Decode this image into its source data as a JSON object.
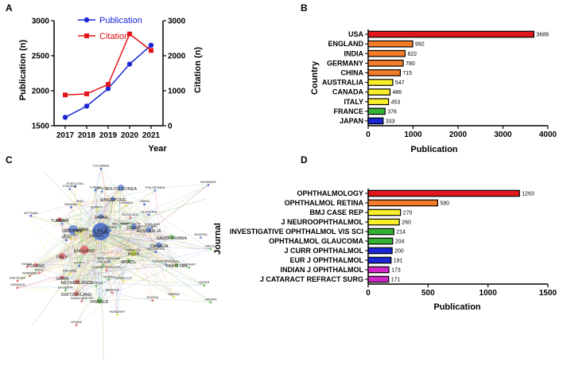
{
  "panels": {
    "a": "A",
    "b": "B",
    "c": "C",
    "d": "D"
  },
  "chart_data": [
    {
      "type": "line",
      "panel": "A",
      "x": [
        2017,
        2018,
        2019,
        2020,
        2021
      ],
      "series": [
        {
          "name": "Publication",
          "axis": "left",
          "color": "#1a25d6",
          "marker": "circle",
          "values": [
            1620,
            1780,
            2030,
            2380,
            2650
          ]
        },
        {
          "name": "Citation",
          "axis": "right",
          "color": "#e2171c",
          "marker": "square",
          "values": [
            880,
            910,
            1180,
            2620,
            2150
          ]
        }
      ],
      "xticks": [
        "2017",
        "2018",
        "2019",
        "2020",
        "2021"
      ],
      "yticks_left": [
        "1500",
        "2000",
        "2500",
        "3000"
      ],
      "yticks_right": [
        "0",
        "1000",
        "2000",
        "3000"
      ],
      "ylim_left": [
        1500,
        3000
      ],
      "ylim_right": [
        0,
        3000
      ],
      "xlabel": "Year",
      "ylabel": "Publication (n)",
      "ylabel_right": "Citation (n)"
    },
    {
      "type": "bar",
      "orientation": "horizontal",
      "panel": "B",
      "categories": [
        "USA",
        "ENGLAND",
        "INDIA",
        "GERMANY",
        "CHINA",
        "AUSTRALIA",
        "CANADA",
        "ITALY",
        "FRANCE",
        "JAPAN"
      ],
      "values": [
        3689,
        992,
        822,
        780,
        715,
        547,
        486,
        453,
        376,
        333
      ],
      "value_labels": [
        "3689",
        "992",
        "822",
        "780",
        "715",
        "547",
        "486",
        "453",
        "376",
        "333"
      ],
      "colors": [
        "#e2171c",
        "#f47c28",
        "#f47c28",
        "#f47c28",
        "#f47c28",
        "#f8ef2a",
        "#f8ef2a",
        "#f8ef2a",
        "#36b233",
        "#1a25d6"
      ],
      "xticks": [
        "0",
        "1000",
        "2000",
        "3000",
        "4000"
      ],
      "xlim": [
        0,
        4000
      ],
      "xlabel": "Publication",
      "ylabel": "Country"
    },
    {
      "type": "bar",
      "orientation": "horizontal",
      "panel": "D",
      "categories": [
        "OPHTHALMOLOGY",
        "OPHTHALMOL RETINA",
        "BMJ CASE REP",
        "J NEUROOPHTHALMOL",
        "INVESTIGATIVE OPHTHALMOL VIS SCI",
        "OPHTHALMOL GLAUCOMA",
        "J CURR OPHTHALMOL",
        "EUR J OPHTHALMOL",
        "INDIAN J OPHTHALMOL",
        "J CATARACT REFRACT SURG"
      ],
      "values": [
        1263,
        580,
        270,
        260,
        214,
        204,
        200,
        191,
        173,
        171
      ],
      "value_labels": [
        "1263",
        "580",
        "270",
        "260",
        "214",
        "204",
        "200",
        "191",
        "173",
        "171"
      ],
      "colors": [
        "#e2171c",
        "#f47c28",
        "#f8ef2a",
        "#f8ef2a",
        "#36b233",
        "#36b233",
        "#1a25d6",
        "#1a25d6",
        "#d026c7",
        "#d026c7"
      ],
      "xticks": [
        "0",
        "500",
        "1000",
        "1500"
      ],
      "xlim": [
        0,
        1500
      ],
      "xlabel": "Publication",
      "ylabel": "Journal"
    }
  ],
  "network": {
    "major_nodes": [
      {
        "label": "USA",
        "color": "#4a6fc9"
      },
      {
        "label": "ENGLAND",
        "color": "#e06e73"
      },
      {
        "label": "GERMANY",
        "color": "#6a8ad6"
      },
      {
        "label": "CHINA",
        "color": "#6a8ad6"
      },
      {
        "label": "AUSTRALIA",
        "color": "#6a8ad6"
      },
      {
        "label": "INDIA",
        "color": "#e7e04a"
      },
      {
        "label": "JAPAN",
        "color": "#6a8ad6"
      },
      {
        "label": "CANADA",
        "color": "#6a8ad6"
      },
      {
        "label": "ITALY",
        "color": "#e06e73"
      },
      {
        "label": "FRANCE",
        "color": "#6fbf5e"
      },
      {
        "label": "TURKEY",
        "color": "#e06e73"
      },
      {
        "label": "SOUTH KOREA",
        "color": "#6a8ad6"
      },
      {
        "label": "SINGAPORE",
        "color": "#6a8ad6"
      },
      {
        "label": "SWITZERLAND",
        "color": "#e06e73"
      },
      {
        "label": "NETHERLANDS",
        "color": "#e06e73"
      },
      {
        "label": "SAUDI ARABIA",
        "color": "#6fbf5e"
      },
      {
        "label": "PAKISTAN",
        "color": "#6fbf5e"
      },
      {
        "label": "POLAND",
        "color": "#e06e73"
      },
      {
        "label": "BRAZIL",
        "color": "#6fbf5e"
      },
      {
        "label": "SPAIN",
        "color": "#e06e73"
      }
    ],
    "minor_nodes": [
      "VIETNAM",
      "THAILAND",
      "MALAYSIA",
      "TAIWAN",
      "IRAN",
      "EGYPT",
      "MEXICO",
      "ISRAEL",
      "GREECE",
      "BELGIUM",
      "AUSTRIA",
      "DENMARK",
      "SWEDEN",
      "NORWAY",
      "IRELAND",
      "PORTUGAL",
      "CZECH REPUBLIC",
      "ROMANIA",
      "CROATIA",
      "SERBIA",
      "NEPAL",
      "NIGERIA",
      "KENYA",
      "GHANA",
      "CHILE",
      "COLOMBIA",
      "ARGENTINA",
      "PERU",
      "QATAR",
      "KUWAIT",
      "OMAN",
      "JORDAN",
      "LEBANON",
      "CYPRUS",
      "MOROCCO",
      "TUNISIA",
      "NEW ZEALAND",
      "SCOTLAND",
      "WALES",
      "UGANDA",
      "PANAMA",
      "ARMENIA",
      "BANGLADESH",
      "SRI LANKA",
      "HUNGARY",
      "SLOVENIA",
      "FINLAND",
      "RUSSIA",
      "ETHIOPIA",
      "SOUTH AFRICA",
      "INDONESIA",
      "PHILIPPINES",
      "U ARAB EMIRATES",
      "CAMEROON",
      "IRAQ"
    ]
  }
}
